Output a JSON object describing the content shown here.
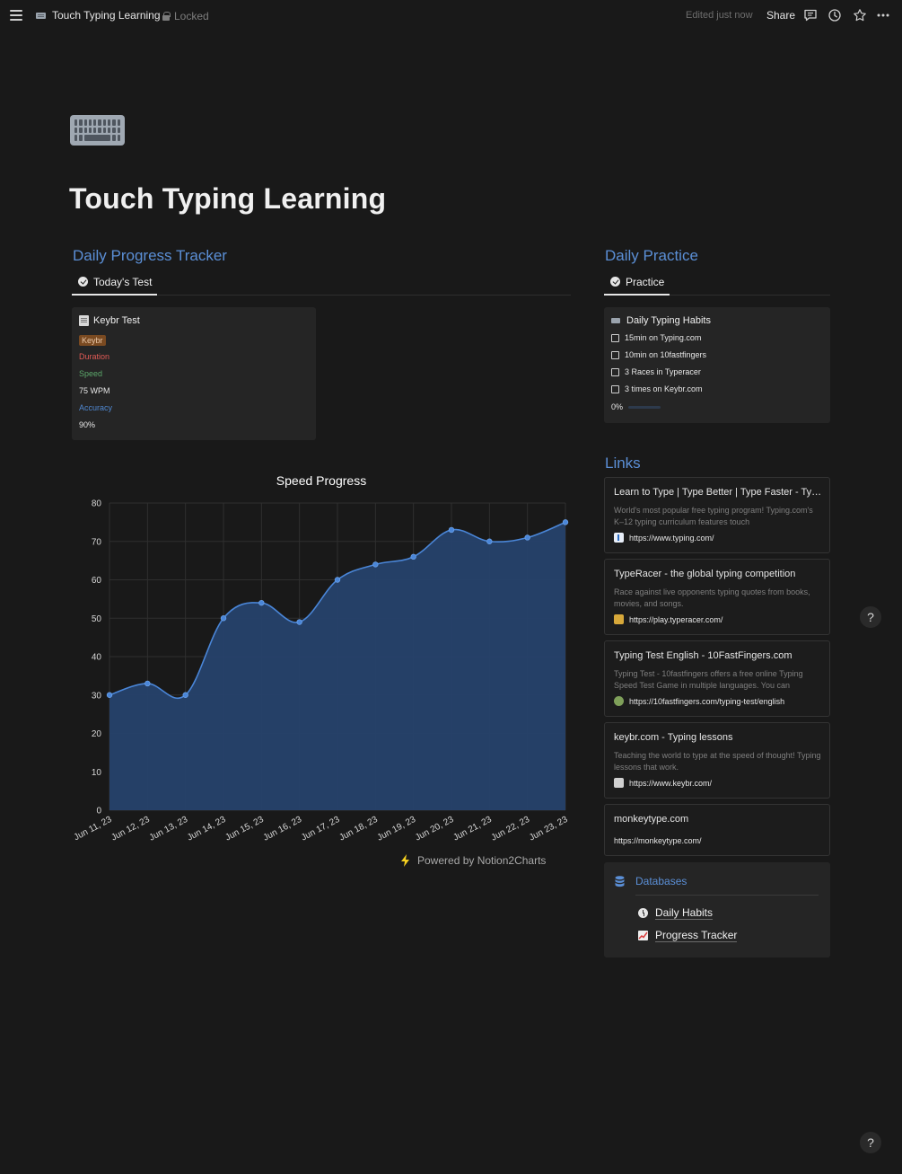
{
  "topbar": {
    "crumb_title": "Touch Typing Learning",
    "locked_label": "Locked",
    "edited": "Edited just now",
    "share_label": "Share"
  },
  "page": {
    "title": "Touch Typing Learning",
    "icon": "keyboard-icon"
  },
  "progress_section": {
    "heading": "Daily Progress Tracker",
    "tab_label": "Today's Test",
    "card": {
      "title": "Keybr Test",
      "tag": "Keybr",
      "duration_label": "Duration",
      "speed_label": "Speed",
      "speed_value": "75 WPM",
      "accuracy_label": "Accuracy",
      "accuracy_value": "90%"
    }
  },
  "practice_section": {
    "heading": "Daily Practice",
    "tab_label": "Practice",
    "card": {
      "title": "Daily Typing Habits",
      "items": [
        "15min on Typing.com",
        "10min on 10fastfingers",
        "3 Races in Typeracer",
        "3 times on Keybr.com"
      ],
      "progress_label": "0%",
      "progress_fraction": 0
    }
  },
  "links_section": {
    "heading": "Links",
    "links": [
      {
        "title": "Learn to Type | Type Better | Type Faster - Typing.com",
        "desc": "World's most popular free typing program! Typing.com's K–12 typing curriculum features touch",
        "url": "https://www.typing.com/"
      },
      {
        "title": "TypeRacer - the global typing competition",
        "desc": "Race against live opponents typing quotes from books, movies, and songs.",
        "url": "https://play.typeracer.com/"
      },
      {
        "title": "Typing Test English - 10FastFingers.com",
        "desc": "Typing Test - 10fastfingers offers a free online Typing Speed Test Game in multiple languages. You can",
        "url": "https://10fastfingers.com/typing-test/english"
      },
      {
        "title": "keybr.com - Typing lessons",
        "desc": "Teaching the world to type at the speed of thought! Typing lessons that work.",
        "url": "https://www.keybr.com/"
      },
      {
        "title": "monkeytype.com",
        "desc": "",
        "url": "https://monkeytype.com/"
      }
    ]
  },
  "databases": {
    "title": "Databases",
    "items": [
      "Daily Habits",
      "Progress Tracker"
    ]
  },
  "help_label": "?",
  "powered_by": "Powered by Notion2Charts",
  "colors": {
    "accent": "#5b8fd6",
    "chart_line": "#4a86d8",
    "chart_fill": "#26426b",
    "background": "#191919"
  },
  "chart_data": {
    "type": "area",
    "title": "Speed Progress",
    "categories": [
      "Jun 11, 23",
      "Jun 12, 23",
      "Jun 13, 23",
      "Jun 14, 23",
      "Jun 15, 23",
      "Jun 16, 23",
      "Jun 17, 23",
      "Jun 18, 23",
      "Jun 19, 23",
      "Jun 20, 23",
      "Jun 21, 23",
      "Jun 22, 23",
      "Jun 23, 23"
    ],
    "values": [
      30,
      33,
      30,
      50,
      54,
      49,
      60,
      64,
      66,
      73,
      70,
      71,
      75
    ],
    "ylim": [
      0,
      80
    ],
    "yticks": [
      0,
      10,
      20,
      30,
      40,
      50,
      60,
      70,
      80
    ],
    "grid": true,
    "legend": "none"
  }
}
